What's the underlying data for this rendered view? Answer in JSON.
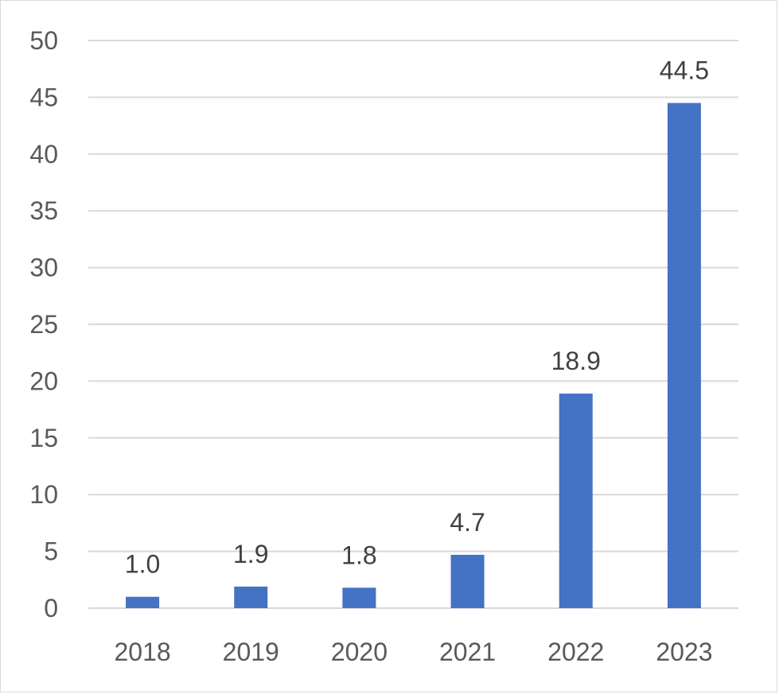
{
  "chart_data": {
    "type": "bar",
    "categories": [
      "2018",
      "2019",
      "2020",
      "2021",
      "2022",
      "2023"
    ],
    "values": [
      1.0,
      1.9,
      1.8,
      4.7,
      18.9,
      44.5
    ],
    "data_labels": [
      "1.0",
      "1.9",
      "1.8",
      "4.7",
      "18.9",
      "44.5"
    ],
    "title": "",
    "xlabel": "",
    "ylabel": "",
    "ylim": [
      0,
      50
    ],
    "yticks": [
      0,
      5,
      10,
      15,
      20,
      25,
      30,
      35,
      40,
      45,
      50
    ],
    "grid": true,
    "legend": "none",
    "colors": {
      "bar": "#4472C4",
      "gridline": "#d9d9d9",
      "tick_text": "#595959",
      "label_text": "#404040"
    }
  }
}
